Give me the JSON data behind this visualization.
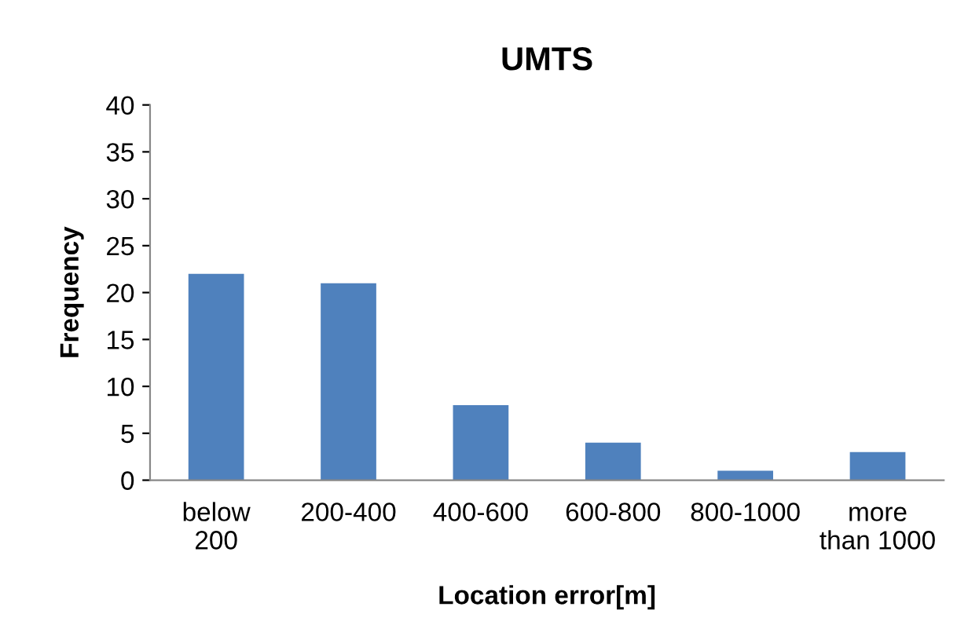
{
  "chart_data": {
    "type": "bar",
    "title": "UMTS",
    "xlabel": "Location error[m]",
    "ylabel": "Frequency",
    "categories": [
      "below\n200",
      "200-400",
      "400-600",
      "600-800",
      "800-1000",
      "more\nthan 1000"
    ],
    "values": [
      22,
      21,
      8,
      4,
      1,
      3
    ],
    "color": "#4f81bd",
    "ylim": [
      0,
      40
    ],
    "yticks": [
      0,
      5,
      10,
      15,
      20,
      25,
      30,
      35,
      40
    ],
    "grid": false,
    "legend": false
  }
}
